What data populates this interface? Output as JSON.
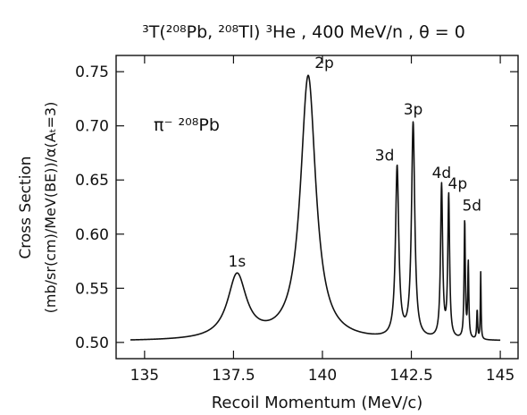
{
  "chart_data": {
    "type": "line",
    "title": "³T(²⁰⁸Pb, ²⁰⁸Tl) ³He , 400 MeV/n , θ = 0",
    "xlabel": "Recoil Momentum  (MeV/c)",
    "ylabel_line1": "Cross Section",
    "ylabel_line2": "(mb/sr(cm)/MeV(BE))/α(Aₜ=3)",
    "xlim": [
      134.2,
      145.5
    ],
    "ylim": [
      0.485,
      0.765
    ],
    "x_ticks": [
      {
        "value": 135,
        "label": "135"
      },
      {
        "value": 137.5,
        "label": "137.5"
      },
      {
        "value": 140,
        "label": "140"
      },
      {
        "value": 142.5,
        "label": "142.5"
      },
      {
        "value": 145,
        "label": "145"
      }
    ],
    "y_ticks": [
      {
        "value": 0.5,
        "label": "0.50"
      },
      {
        "value": 0.55,
        "label": "0.55"
      },
      {
        "value": 0.6,
        "label": "0.60"
      },
      {
        "value": 0.65,
        "label": "0.65"
      },
      {
        "value": 0.7,
        "label": "0.70"
      },
      {
        "value": 0.75,
        "label": "0.75"
      }
    ],
    "annotation": "π⁻ ²⁰⁸Pb",
    "baseline": 0.501,
    "peaks": [
      {
        "label": "1s",
        "x": 137.6,
        "y": 0.56
      },
      {
        "label": "2p",
        "x": 139.6,
        "y": 0.745
      },
      {
        "label": "3d",
        "x": 142.1,
        "y": 0.658
      },
      {
        "label": "3p",
        "x": 142.55,
        "y": 0.699
      },
      {
        "label": "4d",
        "x": 143.35,
        "y": 0.642
      },
      {
        "label": "4p",
        "x": 143.55,
        "y": 0.632
      },
      {
        "label": "5d",
        "x": 144.0,
        "y": 0.61
      },
      {
        "label": "",
        "x": 144.1,
        "y": 0.57
      },
      {
        "label": "",
        "x": 144.35,
        "y": 0.528
      },
      {
        "label": "",
        "x": 144.45,
        "y": 0.563
      }
    ],
    "grid": false,
    "legend": "none"
  }
}
